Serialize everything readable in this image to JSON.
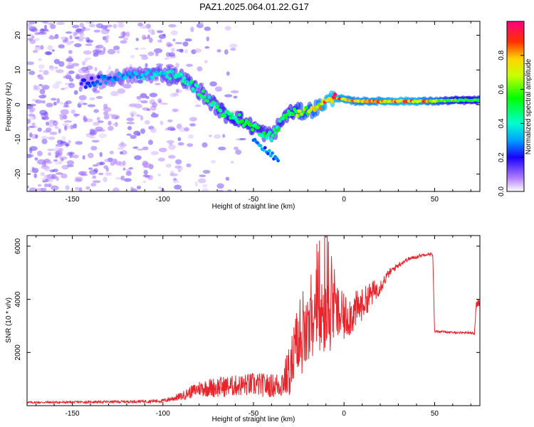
{
  "figure": {
    "title": "PAZ1.2025.064.01.22.G17"
  },
  "colors": {
    "signal": "#e8242b",
    "frame": "#000000",
    "background": "#ffffff"
  },
  "chart_data": [
    {
      "type": "heatmap",
      "name": "spectrogram",
      "xlabel": "Height of straight line (km)",
      "ylabel": "Frequency (Hz)",
      "xlim": [
        -175,
        75
      ],
      "ylim": [
        -25,
        24
      ],
      "xticks": [
        -150,
        -100,
        -50,
        0,
        50
      ],
      "xtick_labels": [
        "-150",
        "-100",
        "-50",
        "0",
        "50"
      ],
      "yticks": [
        -20,
        -10,
        0,
        10,
        20
      ],
      "ytick_labels": [
        "-20",
        "-10",
        "0",
        "10",
        "20"
      ],
      "ridge": {
        "x": [
          -145,
          -130,
          -115,
          -100,
          -90,
          -80,
          -72,
          -65,
          -58,
          -52,
          -48,
          -45,
          -40,
          -36,
          -32,
          -28,
          -22,
          -15,
          -8,
          -4,
          0,
          5,
          10,
          20,
          30,
          40,
          50,
          60,
          75
        ],
        "y": [
          6,
          7.5,
          8.5,
          9,
          8,
          4,
          0,
          -3,
          -4,
          -6,
          -7,
          -8,
          -9,
          -6,
          -3,
          -2,
          -2,
          -1,
          1.5,
          2,
          1.5,
          1,
          1,
          1,
          1,
          1,
          1,
          1.2,
          1.3
        ],
        "strength": [
          0.2,
          0.3,
          0.35,
          0.4,
          0.45,
          0.45,
          0.5,
          0.5,
          0.55,
          0.55,
          0.5,
          0.5,
          0.45,
          0.5,
          0.5,
          0.6,
          0.7,
          0.75,
          0.95,
          0.9,
          0.85,
          0.8,
          0.8,
          0.85,
          0.9,
          0.85,
          0.75,
          0.6,
          0.55
        ]
      },
      "colorbar": {
        "label": "Normalized spectral amplitude",
        "range": [
          0,
          1
        ],
        "ticks": [
          0.0,
          0.2,
          0.4,
          0.6,
          0.8
        ],
        "tick_labels": [
          "0.0",
          "0.2",
          "0.4",
          "0.6",
          "0.8"
        ]
      }
    },
    {
      "type": "line",
      "name": "snr",
      "xlabel": "Height of straight line (km)",
      "ylabel": "SNR (10 * v/v)",
      "xlim": [
        -175,
        75
      ],
      "ylim": [
        0,
        6400
      ],
      "xticks": [
        -150,
        -100,
        -50,
        0,
        50
      ],
      "xtick_labels": [
        "-150",
        "-100",
        "-50",
        "0",
        "50"
      ],
      "yticks": [
        2000,
        4000,
        6000
      ],
      "ytick_labels": [
        "2000",
        "4000",
        "6000"
      ],
      "series": [
        {
          "name": "SNR",
          "x": [
            -175,
            -150,
            -120,
            -100,
            -90,
            -80,
            -70,
            -60,
            -50,
            -40,
            -35,
            -30,
            -27,
            -20,
            -15,
            -10,
            -5,
            0,
            5,
            10,
            15,
            20,
            25,
            30,
            35,
            40,
            45,
            48,
            49,
            50,
            55,
            60,
            65,
            70,
            72,
            73,
            75
          ],
          "mean": [
            120,
            130,
            150,
            180,
            350,
            650,
            700,
            750,
            800,
            750,
            800,
            1300,
            2000,
            2700,
            3200,
            3300,
            3500,
            3300,
            3500,
            3800,
            4200,
            4500,
            5000,
            5300,
            5500,
            5600,
            5700,
            5700,
            5650,
            2800,
            2780,
            2750,
            2750,
            2750,
            2700,
            3800,
            3900
          ],
          "noise": [
            40,
            40,
            50,
            70,
            150,
            300,
            400,
            400,
            450,
            450,
            500,
            1000,
            1400,
            1200,
            1400,
            1500,
            1200,
            900,
            800,
            600,
            500,
            300,
            150,
            100,
            80,
            70,
            60,
            60,
            60,
            40,
            40,
            40,
            40,
            40,
            40,
            150,
            150
          ]
        }
      ]
    }
  ]
}
